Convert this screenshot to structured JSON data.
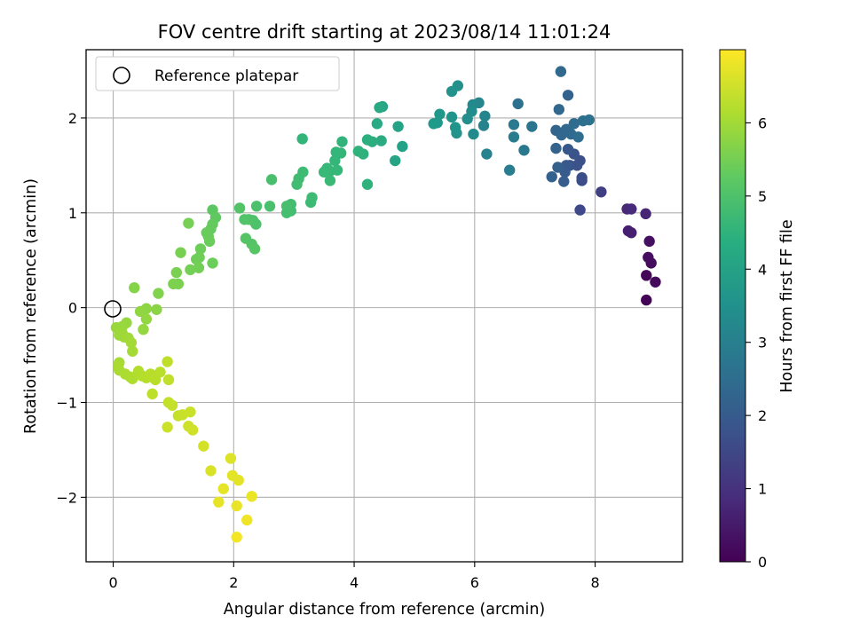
{
  "chart_data": {
    "type": "scatter",
    "title": "FOV centre drift starting at 2023/08/14 11:01:24",
    "xlabel": "Angular distance from reference (arcmin)",
    "ylabel": "Rotation from reference (arcmin)",
    "xlim": [
      -0.45,
      9.45
    ],
    "ylim": [
      -2.68,
      2.72
    ],
    "xticks": [
      0,
      2,
      4,
      6,
      8
    ],
    "yticks": [
      -2,
      -1,
      0,
      1,
      2
    ],
    "grid": true,
    "legend": {
      "position": "top-left",
      "entries": [
        "Reference platepar"
      ]
    },
    "reference_point": {
      "x": 0,
      "y": 0
    },
    "colorbar": {
      "label": "Hours from first FF file",
      "colormap": "viridis",
      "range": [
        0,
        7.0
      ],
      "ticks": [
        0,
        1,
        2,
        3,
        4,
        5,
        6
      ]
    },
    "points": [
      {
        "x": 8.85,
        "y": 0.08,
        "h": 0.05
      },
      {
        "x": 8.85,
        "y": 0.34,
        "h": 0.1
      },
      {
        "x": 9.0,
        "y": 0.27,
        "h": 0.15
      },
      {
        "x": 8.93,
        "y": 0.47,
        "h": 0.2
      },
      {
        "x": 8.88,
        "y": 0.53,
        "h": 0.25
      },
      {
        "x": 8.9,
        "y": 0.7,
        "h": 0.3
      },
      {
        "x": 8.55,
        "y": 0.81,
        "h": 0.55
      },
      {
        "x": 8.6,
        "y": 0.79,
        "h": 0.6
      },
      {
        "x": 8.84,
        "y": 0.99,
        "h": 0.7
      },
      {
        "x": 8.53,
        "y": 1.04,
        "h": 0.8
      },
      {
        "x": 8.6,
        "y": 1.04,
        "h": 0.85
      },
      {
        "x": 8.1,
        "y": 1.22,
        "h": 1.3
      },
      {
        "x": 7.75,
        "y": 1.03,
        "h": 1.5
      },
      {
        "x": 7.78,
        "y": 1.34,
        "h": 1.6
      },
      {
        "x": 7.78,
        "y": 1.37,
        "h": 1.65
      },
      {
        "x": 7.75,
        "y": 1.55,
        "h": 1.7
      },
      {
        "x": 7.7,
        "y": 1.5,
        "h": 1.75
      },
      {
        "x": 7.65,
        "y": 1.62,
        "h": 1.8
      },
      {
        "x": 7.58,
        "y": 1.5,
        "h": 1.85
      },
      {
        "x": 7.55,
        "y": 1.67,
        "h": 1.9
      },
      {
        "x": 7.52,
        "y": 1.5,
        "h": 1.95
      },
      {
        "x": 7.5,
        "y": 1.43,
        "h": 2.0
      },
      {
        "x": 7.48,
        "y": 1.33,
        "h": 2.05
      },
      {
        "x": 7.38,
        "y": 1.48,
        "h": 2.1
      },
      {
        "x": 7.28,
        "y": 1.38,
        "h": 2.15
      },
      {
        "x": 7.35,
        "y": 1.68,
        "h": 2.2
      },
      {
        "x": 7.35,
        "y": 1.87,
        "h": 2.25
      },
      {
        "x": 7.44,
        "y": 1.82,
        "h": 2.3
      },
      {
        "x": 7.52,
        "y": 1.88,
        "h": 2.35
      },
      {
        "x": 7.6,
        "y": 1.83,
        "h": 2.4
      },
      {
        "x": 7.65,
        "y": 1.94,
        "h": 2.45
      },
      {
        "x": 7.72,
        "y": 1.8,
        "h": 2.5
      },
      {
        "x": 7.8,
        "y": 1.97,
        "h": 2.55
      },
      {
        "x": 7.9,
        "y": 1.98,
        "h": 2.6
      },
      {
        "x": 7.55,
        "y": 2.24,
        "h": 2.2
      },
      {
        "x": 7.4,
        "y": 2.09,
        "h": 2.3
      },
      {
        "x": 7.43,
        "y": 2.49,
        "h": 2.35
      },
      {
        "x": 6.72,
        "y": 2.15,
        "h": 2.6
      },
      {
        "x": 6.95,
        "y": 1.91,
        "h": 2.75
      },
      {
        "x": 6.82,
        "y": 1.66,
        "h": 2.8
      },
      {
        "x": 6.65,
        "y": 1.93,
        "h": 2.85
      },
      {
        "x": 6.65,
        "y": 1.8,
        "h": 2.9
      },
      {
        "x": 6.58,
        "y": 1.45,
        "h": 2.95
      },
      {
        "x": 6.2,
        "y": 1.62,
        "h": 3.1
      },
      {
        "x": 6.15,
        "y": 1.92,
        "h": 3.15
      },
      {
        "x": 6.17,
        "y": 2.02,
        "h": 3.2
      },
      {
        "x": 6.07,
        "y": 2.16,
        "h": 3.25
      },
      {
        "x": 5.97,
        "y": 2.14,
        "h": 3.3
      },
      {
        "x": 5.98,
        "y": 1.83,
        "h": 3.35
      },
      {
        "x": 5.95,
        "y": 2.07,
        "h": 3.4
      },
      {
        "x": 5.88,
        "y": 1.99,
        "h": 3.45
      },
      {
        "x": 5.72,
        "y": 2.34,
        "h": 3.5
      },
      {
        "x": 5.62,
        "y": 2.28,
        "h": 3.55
      },
      {
        "x": 5.7,
        "y": 1.84,
        "h": 3.6
      },
      {
        "x": 5.68,
        "y": 1.9,
        "h": 3.62
      },
      {
        "x": 5.62,
        "y": 2.01,
        "h": 3.65
      },
      {
        "x": 5.42,
        "y": 2.04,
        "h": 3.7
      },
      {
        "x": 5.38,
        "y": 1.95,
        "h": 3.75
      },
      {
        "x": 5.32,
        "y": 1.94,
        "h": 3.8
      },
      {
        "x": 4.8,
        "y": 1.7,
        "h": 4.0
      },
      {
        "x": 4.73,
        "y": 1.91,
        "h": 4.05
      },
      {
        "x": 4.68,
        "y": 1.55,
        "h": 4.1
      },
      {
        "x": 4.47,
        "y": 2.12,
        "h": 4.15
      },
      {
        "x": 4.42,
        "y": 2.11,
        "h": 4.2
      },
      {
        "x": 4.38,
        "y": 1.94,
        "h": 4.25
      },
      {
        "x": 4.45,
        "y": 1.76,
        "h": 4.3
      },
      {
        "x": 4.3,
        "y": 1.75,
        "h": 4.35
      },
      {
        "x": 4.22,
        "y": 1.77,
        "h": 4.4
      },
      {
        "x": 4.15,
        "y": 1.62,
        "h": 4.45
      },
      {
        "x": 4.07,
        "y": 1.65,
        "h": 4.5
      },
      {
        "x": 4.22,
        "y": 1.3,
        "h": 4.5
      },
      {
        "x": 3.8,
        "y": 1.75,
        "h": 4.55
      },
      {
        "x": 3.78,
        "y": 1.63,
        "h": 4.6
      },
      {
        "x": 3.7,
        "y": 1.64,
        "h": 4.62
      },
      {
        "x": 3.68,
        "y": 1.55,
        "h": 4.64
      },
      {
        "x": 3.72,
        "y": 1.45,
        "h": 4.66
      },
      {
        "x": 3.6,
        "y": 1.44,
        "h": 4.68
      },
      {
        "x": 3.55,
        "y": 1.47,
        "h": 4.7
      },
      {
        "x": 3.5,
        "y": 1.43,
        "h": 4.72
      },
      {
        "x": 3.6,
        "y": 1.34,
        "h": 4.74
      },
      {
        "x": 3.28,
        "y": 1.11,
        "h": 4.76
      },
      {
        "x": 3.3,
        "y": 1.16,
        "h": 4.78
      },
      {
        "x": 3.14,
        "y": 1.78,
        "h": 4.6
      },
      {
        "x": 3.15,
        "y": 1.43,
        "h": 4.8
      },
      {
        "x": 3.08,
        "y": 1.36,
        "h": 4.82
      },
      {
        "x": 3.05,
        "y": 1.3,
        "h": 4.84
      },
      {
        "x": 2.95,
        "y": 1.02,
        "h": 4.86
      },
      {
        "x": 2.95,
        "y": 1.09,
        "h": 4.88
      },
      {
        "x": 2.88,
        "y": 1.0,
        "h": 4.9
      },
      {
        "x": 2.88,
        "y": 1.07,
        "h": 4.92
      },
      {
        "x": 2.63,
        "y": 1.35,
        "h": 4.94
      },
      {
        "x": 2.6,
        "y": 1.07,
        "h": 4.96
      },
      {
        "x": 2.38,
        "y": 1.07,
        "h": 4.98
      },
      {
        "x": 2.37,
        "y": 0.88,
        "h": 5.0
      },
      {
        "x": 2.32,
        "y": 0.92,
        "h": 5.02
      },
      {
        "x": 2.25,
        "y": 0.93,
        "h": 5.04
      },
      {
        "x": 2.18,
        "y": 0.93,
        "h": 5.06
      },
      {
        "x": 2.1,
        "y": 1.05,
        "h": 5.08
      },
      {
        "x": 2.2,
        "y": 0.73,
        "h": 5.1
      },
      {
        "x": 2.3,
        "y": 0.67,
        "h": 5.12
      },
      {
        "x": 2.35,
        "y": 0.62,
        "h": 5.14
      },
      {
        "x": 1.65,
        "y": 1.03,
        "h": 5.2
      },
      {
        "x": 1.7,
        "y": 0.95,
        "h": 5.25
      },
      {
        "x": 1.65,
        "y": 0.88,
        "h": 5.3
      },
      {
        "x": 1.62,
        "y": 0.83,
        "h": 5.32
      },
      {
        "x": 1.58,
        "y": 0.75,
        "h": 5.34
      },
      {
        "x": 1.55,
        "y": 0.79,
        "h": 5.36
      },
      {
        "x": 1.6,
        "y": 0.7,
        "h": 5.38
      },
      {
        "x": 1.65,
        "y": 0.47,
        "h": 5.4
      },
      {
        "x": 1.45,
        "y": 0.62,
        "h": 5.42
      },
      {
        "x": 1.43,
        "y": 0.53,
        "h": 5.44
      },
      {
        "x": 1.38,
        "y": 0.51,
        "h": 5.46
      },
      {
        "x": 1.42,
        "y": 0.42,
        "h": 5.48
      },
      {
        "x": 1.28,
        "y": 0.4,
        "h": 5.5
      },
      {
        "x": 1.25,
        "y": 0.89,
        "h": 5.52
      },
      {
        "x": 1.12,
        "y": 0.58,
        "h": 5.54
      },
      {
        "x": 1.05,
        "y": 0.37,
        "h": 5.56
      },
      {
        "x": 1.08,
        "y": 0.25,
        "h": 5.58
      },
      {
        "x": 1.0,
        "y": 0.25,
        "h": 5.6
      },
      {
        "x": 0.75,
        "y": 0.15,
        "h": 5.65
      },
      {
        "x": 0.35,
        "y": 0.21,
        "h": 5.7
      },
      {
        "x": 0.72,
        "y": -0.02,
        "h": 5.75
      },
      {
        "x": 0.55,
        "y": -0.01,
        "h": 5.8
      },
      {
        "x": 0.45,
        "y": -0.04,
        "h": 5.82
      },
      {
        "x": 0.55,
        "y": -0.12,
        "h": 5.84
      },
      {
        "x": 0.5,
        "y": -0.23,
        "h": 5.86
      },
      {
        "x": 0.22,
        "y": -0.16,
        "h": 5.88
      },
      {
        "x": 0.15,
        "y": -0.2,
        "h": 5.9
      },
      {
        "x": 0.05,
        "y": -0.21,
        "h": 5.92
      },
      {
        "x": 0.15,
        "y": -0.27,
        "h": 5.94
      },
      {
        "x": 0.1,
        "y": -0.29,
        "h": 5.96
      },
      {
        "x": 0.18,
        "y": -0.31,
        "h": 5.98
      },
      {
        "x": 0.25,
        "y": -0.32,
        "h": 6.0
      },
      {
        "x": 0.3,
        "y": -0.37,
        "h": 6.02
      },
      {
        "x": 0.32,
        "y": -0.46,
        "h": 6.04
      },
      {
        "x": 0.1,
        "y": -0.58,
        "h": 6.06
      },
      {
        "x": 0.08,
        "y": -0.62,
        "h": 6.08
      },
      {
        "x": 0.1,
        "y": -0.66,
        "h": 6.1
      },
      {
        "x": 0.2,
        "y": -0.7,
        "h": 6.12
      },
      {
        "x": 0.28,
        "y": -0.73,
        "h": 6.14
      },
      {
        "x": 0.32,
        "y": -0.75,
        "h": 6.16
      },
      {
        "x": 0.42,
        "y": -0.67,
        "h": 6.18
      },
      {
        "x": 0.48,
        "y": -0.72,
        "h": 6.2
      },
      {
        "x": 0.55,
        "y": -0.74,
        "h": 6.22
      },
      {
        "x": 0.62,
        "y": -0.7,
        "h": 6.24
      },
      {
        "x": 0.7,
        "y": -0.76,
        "h": 6.26
      },
      {
        "x": 0.78,
        "y": -0.68,
        "h": 6.28
      },
      {
        "x": 0.65,
        "y": -0.91,
        "h": 6.3
      },
      {
        "x": 0.9,
        "y": -0.57,
        "h": 6.32
      },
      {
        "x": 0.92,
        "y": -0.76,
        "h": 6.34
      },
      {
        "x": 0.92,
        "y": -1.0,
        "h": 6.36
      },
      {
        "x": 0.98,
        "y": -1.03,
        "h": 6.38
      },
      {
        "x": 1.08,
        "y": -1.14,
        "h": 6.4
      },
      {
        "x": 1.15,
        "y": -1.13,
        "h": 6.42
      },
      {
        "x": 1.28,
        "y": -1.1,
        "h": 6.44
      },
      {
        "x": 0.9,
        "y": -1.26,
        "h": 6.46
      },
      {
        "x": 1.25,
        "y": -1.25,
        "h": 6.48
      },
      {
        "x": 1.32,
        "y": -1.29,
        "h": 6.5
      },
      {
        "x": 1.5,
        "y": -1.46,
        "h": 6.55
      },
      {
        "x": 1.62,
        "y": -1.72,
        "h": 6.6
      },
      {
        "x": 1.95,
        "y": -1.59,
        "h": 6.65
      },
      {
        "x": 1.98,
        "y": -1.77,
        "h": 6.7
      },
      {
        "x": 2.08,
        "y": -1.82,
        "h": 6.72
      },
      {
        "x": 1.83,
        "y": -1.91,
        "h": 6.74
      },
      {
        "x": 1.75,
        "y": -2.05,
        "h": 6.76
      },
      {
        "x": 2.05,
        "y": -2.09,
        "h": 6.78
      },
      {
        "x": 2.3,
        "y": -1.99,
        "h": 6.8
      },
      {
        "x": 2.22,
        "y": -2.24,
        "h": 6.85
      },
      {
        "x": 2.05,
        "y": -2.42,
        "h": 6.9
      }
    ]
  }
}
